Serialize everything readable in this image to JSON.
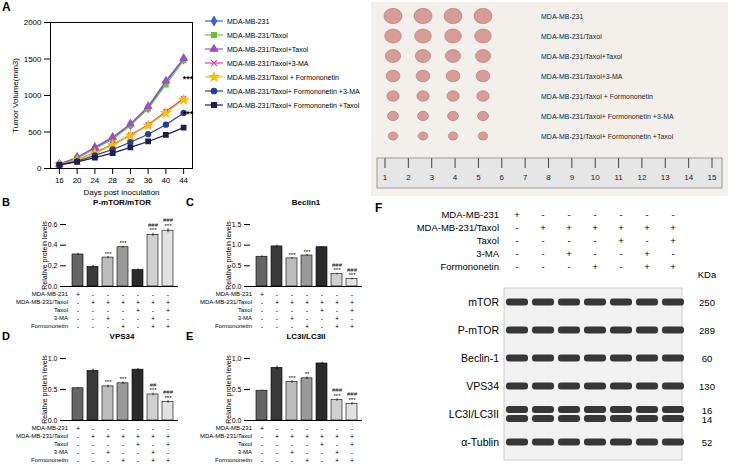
{
  "chart_data": [
    {
      "type": "line",
      "panel": "A",
      "x_label": "Days post inoculation",
      "y_label": "Tumor Volume(mm3)",
      "x": [
        16,
        20,
        24,
        28,
        32,
        36,
        40,
        44
      ],
      "xlim": [
        14,
        46
      ],
      "xticks": [
        16,
        20,
        24,
        28,
        32,
        36,
        40,
        44
      ],
      "ylim": [
        0,
        2000
      ],
      "yticks": [
        0,
        500,
        1000,
        1500,
        2000
      ],
      "series": [
        {
          "name": "MDA-MB-231",
          "color": "#3d5fd9",
          "marker": "diamond",
          "values": [
            60,
            150,
            280,
            420,
            600,
            830,
            1180,
            1500
          ]
        },
        {
          "name": "MDA-MB-231/Taxol",
          "color": "#6cbf3c",
          "marker": "square",
          "values": [
            60,
            140,
            270,
            400,
            590,
            820,
            1150,
            1480
          ]
        },
        {
          "name": "MDA-MB-231/Taxol+Taxol",
          "color": "#9b4fc0",
          "marker": "triangle",
          "values": [
            60,
            150,
            290,
            430,
            610,
            850,
            1200,
            1510
          ]
        },
        {
          "name": "MDA-MB-231/Taxol+3-MA",
          "color": "#e03ca0",
          "marker": "times",
          "values": [
            55,
            120,
            220,
            330,
            460,
            600,
            780,
            960
          ]
        },
        {
          "name": "MDA-MB-231/Taxol + Formononetin",
          "color": "#f2c200",
          "marker": "star",
          "values": [
            55,
            115,
            210,
            320,
            450,
            590,
            760,
            940
          ]
        },
        {
          "name": "MDA-MB-231/Taxol+ Formononetin +3-MA",
          "color": "#2b3c94",
          "marker": "circle",
          "values": [
            50,
            100,
            180,
            260,
            360,
            470,
            600,
            760
          ]
        },
        {
          "name": "MDA-MB-231/Taxol+ Formononetin +Taxol",
          "color": "#1b2050",
          "marker": "square",
          "values": [
            50,
            90,
            150,
            210,
            290,
            370,
            460,
            560
          ]
        }
      ],
      "annotations": [
        {
          "text": "***",
          "x": 45,
          "y": 1230
        },
        {
          "text": "***",
          "x": 45,
          "y": 750
        }
      ]
    },
    {
      "type": "bar",
      "panel": "B",
      "title": "P-mTOR/mTOR",
      "y_label": "Relative protein levels",
      "categories": [
        null,
        null,
        null,
        null,
        null,
        null,
        null
      ],
      "values": [
        0.31,
        0.19,
        0.28,
        0.38,
        0.16,
        0.5,
        0.54
      ],
      "errors": [
        0.01,
        0.015,
        0.01,
        0.01,
        0.01,
        0.015,
        0.02
      ],
      "colors": [
        "#666666",
        "#3a3a3a",
        "#bdbdbd",
        "#9a9a9a",
        "#2b2b2b",
        "#cfcfcf",
        "#e2e2e2"
      ],
      "annotations": [
        null,
        null,
        "***",
        "***",
        null,
        [
          "###",
          "***"
        ],
        [
          "###",
          "***"
        ]
      ],
      "ylim": [
        0,
        0.6
      ],
      "yticks": [
        {
          "value": 0,
          "label": "0.0"
        },
        {
          "value": 0.2,
          "label": "0.2"
        },
        {
          "value": 0.4,
          "label": "0.4"
        },
        {
          "value": 0.6,
          "label": "0.6"
        }
      ],
      "conditions": [
        {
          "name": "MDA-MB-231",
          "values": [
            "+",
            "-",
            "-",
            "-",
            "-",
            "-",
            "-"
          ]
        },
        {
          "name": "MDA-MB-231/Taxol",
          "values": [
            "-",
            "+",
            "+",
            "+",
            "+",
            "+",
            "+"
          ]
        },
        {
          "name": "Taxol",
          "values": [
            "-",
            "-",
            "-",
            "-",
            "+",
            "-",
            "+"
          ]
        },
        {
          "name": "3-MA",
          "values": [
            "-",
            "-",
            "+",
            "-",
            "-",
            "+",
            "-"
          ]
        },
        {
          "name": "Formononetin",
          "values": [
            "-",
            "-",
            "-",
            "+",
            "-",
            "+",
            "+"
          ]
        }
      ]
    },
    {
      "type": "bar",
      "panel": "C",
      "title": "Beclin1",
      "y_label": "Relative protein levels",
      "categories": [
        null,
        null,
        null,
        null,
        null,
        null,
        null
      ],
      "values": [
        0.72,
        0.97,
        0.68,
        0.75,
        0.95,
        0.3,
        0.18
      ],
      "errors": [
        0.02,
        0.03,
        0.02,
        0.02,
        0.02,
        0.02,
        0.02
      ],
      "colors": [
        "#666666",
        "#3a3a3a",
        "#bdbdbd",
        "#9a9a9a",
        "#2b2b2b",
        "#cfcfcf",
        "#e2e2e2"
      ],
      "annotations": [
        null,
        null,
        "***",
        "***",
        null,
        [
          "###",
          "***"
        ],
        [
          "###",
          "***"
        ]
      ],
      "ylim": [
        0,
        1.5
      ],
      "yticks": [
        {
          "value": 0,
          "label": "0.0"
        },
        {
          "value": 0.5,
          "label": "0.5"
        },
        {
          "value": 1,
          "label": "1.0"
        },
        {
          "value": 1.5,
          "label": "1.5"
        }
      ],
      "conditions": [
        {
          "name": "MDA-MB-231",
          "values": [
            "+",
            "-",
            "-",
            "-",
            "-",
            "-",
            "-"
          ]
        },
        {
          "name": "MDA-MB-231/Taxol",
          "values": [
            "-",
            "+",
            "+",
            "+",
            "+",
            "+",
            "+"
          ]
        },
        {
          "name": "Taxol",
          "values": [
            "-",
            "-",
            "-",
            "-",
            "+",
            "-",
            "+"
          ]
        },
        {
          "name": "3-MA",
          "values": [
            "-",
            "-",
            "+",
            "-",
            "-",
            "+",
            "-"
          ]
        },
        {
          "name": "Formononetin",
          "values": [
            "-",
            "-",
            "-",
            "+",
            "-",
            "+",
            "+"
          ]
        }
      ]
    },
    {
      "type": "bar",
      "panel": "D",
      "title": "VPS34",
      "y_label": "Relative protein levels",
      "categories": [
        null,
        null,
        null,
        null,
        null,
        null,
        null
      ],
      "values": [
        0.52,
        0.8,
        0.55,
        0.6,
        0.82,
        0.42,
        0.3
      ],
      "errors": [
        0.01,
        0.03,
        0.02,
        0.02,
        0.02,
        0.02,
        0.02
      ],
      "colors": [
        "#666666",
        "#3a3a3a",
        "#bdbdbd",
        "#9a9a9a",
        "#2b2b2b",
        "#cfcfcf",
        "#e2e2e2"
      ],
      "annotations": [
        null,
        null,
        "***",
        "***",
        null,
        [
          "##",
          "***"
        ],
        [
          "###",
          "***"
        ]
      ],
      "ylim": [
        0,
        1
      ],
      "yticks": [
        {
          "value": 0,
          "label": "0.0"
        },
        {
          "value": 0.5,
          "label": "0.5"
        },
        {
          "value": 1,
          "label": "1.0"
        }
      ],
      "conditions": [
        {
          "name": "MDA-MB-231",
          "values": [
            "+",
            "-",
            "-",
            "-",
            "-",
            "-",
            "-"
          ]
        },
        {
          "name": "MDA-MB-231/Taxol",
          "values": [
            "-",
            "+",
            "+",
            "+",
            "+",
            "+",
            "+"
          ]
        },
        {
          "name": "Taxol",
          "values": [
            "-",
            "-",
            "-",
            "-",
            "+",
            "-",
            "+"
          ]
        },
        {
          "name": "3-MA",
          "values": [
            "-",
            "-",
            "+",
            "-",
            "-",
            "+",
            "-"
          ]
        },
        {
          "name": "Formononetin",
          "values": [
            "-",
            "-",
            "-",
            "+",
            "-",
            "+",
            "+"
          ]
        }
      ]
    },
    {
      "type": "bar",
      "panel": "E",
      "title": "LC3I/LC3II",
      "y_label": "Relative protein levels",
      "categories": [
        null,
        null,
        null,
        null,
        null,
        null,
        null
      ],
      "values": [
        0.48,
        0.85,
        0.62,
        0.68,
        0.92,
        0.33,
        0.27
      ],
      "errors": [
        0.01,
        0.03,
        0.02,
        0.02,
        0.02,
        0.02,
        0.02
      ],
      "colors": [
        "#666666",
        "#3a3a3a",
        "#bdbdbd",
        "#9a9a9a",
        "#2b2b2b",
        "#cfcfcf",
        "#e2e2e2"
      ],
      "annotations": [
        null,
        null,
        "***",
        "**",
        null,
        [
          "###",
          "***"
        ],
        [
          "###",
          "***"
        ]
      ],
      "ylim": [
        0,
        1
      ],
      "yticks": [
        {
          "value": 0,
          "label": "0.0"
        },
        {
          "value": 0.5,
          "label": "0.5"
        },
        {
          "value": 1,
          "label": "1.0"
        }
      ],
      "conditions": [
        {
          "name": "MDA-MB-231",
          "values": [
            "+",
            "-",
            "-",
            "-",
            "-",
            "-",
            "-"
          ]
        },
        {
          "name": "MDA-MB-231/Taxol",
          "values": [
            "-",
            "+",
            "+",
            "+",
            "+",
            "+",
            "+"
          ]
        },
        {
          "name": "Taxol",
          "values": [
            "-",
            "-",
            "-",
            "-",
            "+",
            "-",
            "+"
          ]
        },
        {
          "name": "3-MA",
          "values": [
            "-",
            "-",
            "+",
            "-",
            "-",
            "+",
            "-"
          ]
        },
        {
          "name": "Formononetin",
          "values": [
            "-",
            "-",
            "-",
            "+",
            "-",
            "+",
            "+"
          ]
        }
      ]
    }
  ],
  "photo": {
    "labels": [
      "MDA-MB-231",
      "MDA-MB-231/Taxol",
      "MDA-MB-231/Taxol+Taxol",
      "MDA-MB-231/Taxol+3-MA",
      "MDA-MB-231/Taxol + Formononetin",
      "MDA-MB-231/Taxol+ Formononetin +3-MA",
      "MDA-MB-231/Taxol+ Formononetin +Taxol"
    ],
    "ruler": [
      1,
      2,
      3,
      4,
      5,
      6,
      7,
      8,
      9,
      10,
      11,
      12,
      13,
      14,
      15
    ]
  },
  "blot": {
    "panel": "F",
    "unit": "KDa",
    "conditions": [
      {
        "name": "MDA-MB-231",
        "values": [
          "+",
          "-",
          "-",
          "-",
          "-",
          "-",
          "-"
        ]
      },
      {
        "name": "MDA-MB-231/Taxol",
        "values": [
          "-",
          "+",
          "+",
          "+",
          "+",
          "+",
          "+"
        ]
      },
      {
        "name": "Taxol",
        "values": [
          "-",
          "-",
          "-",
          "-",
          "+",
          "-",
          "+"
        ]
      },
      {
        "name": "3-MA",
        "values": [
          "-",
          "-",
          "+",
          "-",
          "-",
          "+",
          "-"
        ]
      },
      {
        "name": "Formononetin",
        "values": [
          "-",
          "-",
          "-",
          "+",
          "-",
          "+",
          "+"
        ]
      }
    ],
    "proteins": [
      {
        "name": "mTOR",
        "kda": [
          250
        ]
      },
      {
        "name": "P-mTOR",
        "kda": [
          289
        ]
      },
      {
        "name": "Beclin-1",
        "kda": [
          60
        ]
      },
      {
        "name": "VPS34",
        "kda": [
          130
        ]
      },
      {
        "name": "LC3I/LC3II",
        "kda": [
          16,
          14
        ]
      },
      {
        "name": "α-Tublin",
        "kda": [
          52
        ]
      }
    ]
  }
}
